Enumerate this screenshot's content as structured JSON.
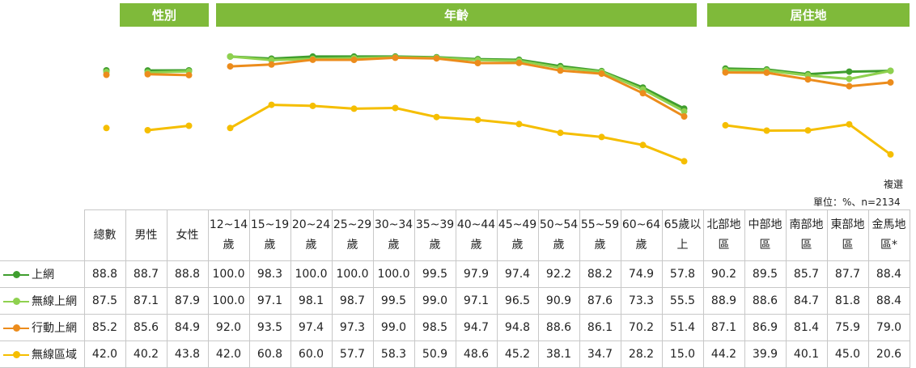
{
  "header_groups": [
    "性別",
    "年齡",
    "居住地"
  ],
  "note_multi": "複選",
  "unit_note": "單位：%、n=2134",
  "chart_data": {
    "type": "line",
    "categories": [
      "總數",
      "男性",
      "女性",
      "12~14歲",
      "15~19歲",
      "20~24歲",
      "25~29歲",
      "30~34歲",
      "35~39歲",
      "40~44歲",
      "45~49歲",
      "50~54歲",
      "55~59歲",
      "60~64歲",
      "65歲以上",
      "北部地區",
      "中部地區",
      "南部地區",
      "東部地區",
      "金馬地區*"
    ],
    "series": [
      {
        "name": "上網",
        "color": "#3f9e2e",
        "values": [
          88.8,
          88.7,
          88.8,
          100.0,
          98.3,
          100.0,
          100.0,
          100.0,
          99.5,
          97.9,
          97.4,
          92.2,
          88.2,
          74.9,
          57.8,
          90.2,
          89.5,
          85.7,
          87.7,
          88.4
        ]
      },
      {
        "name": "無線上網",
        "color": "#8fd14f",
        "values": [
          87.5,
          87.1,
          87.9,
          100.0,
          97.1,
          98.1,
          98.7,
          99.5,
          99.0,
          97.1,
          96.5,
          90.9,
          87.6,
          73.3,
          55.5,
          88.9,
          88.6,
          84.7,
          81.8,
          88.4
        ]
      },
      {
        "name": "行動上網",
        "color": "#ec8c1c",
        "values": [
          85.2,
          85.6,
          84.9,
          92.0,
          93.5,
          97.4,
          97.3,
          99.0,
          98.5,
          94.7,
          94.8,
          88.6,
          86.1,
          70.2,
          51.4,
          87.1,
          86.9,
          81.4,
          75.9,
          79.0
        ]
      },
      {
        "name": "無線區域",
        "color": "#f5be00",
        "values": [
          42.0,
          40.2,
          43.8,
          42.0,
          60.8,
          60.0,
          57.7,
          58.3,
          50.9,
          48.6,
          45.2,
          38.1,
          34.7,
          28.2,
          15.0,
          44.2,
          39.9,
          40.1,
          45.0,
          20.6
        ]
      }
    ],
    "groups": [
      {
        "label": "總數",
        "indices": [
          0
        ]
      },
      {
        "label": "性別",
        "indices": [
          1,
          2
        ]
      },
      {
        "label": "年齡",
        "indices": [
          3,
          4,
          5,
          6,
          7,
          8,
          9,
          10,
          11,
          12,
          13,
          14
        ]
      },
      {
        "label": "居住地",
        "indices": [
          15,
          16,
          17,
          18,
          19
        ]
      }
    ]
  },
  "table": {
    "headers": [
      [
        "總數"
      ],
      [
        "男性"
      ],
      [
        "女性"
      ],
      [
        "12~14",
        "歲"
      ],
      [
        "15~19",
        "歲"
      ],
      [
        "20~24",
        "歲"
      ],
      [
        "25~29",
        "歲"
      ],
      [
        "30~34",
        "歲"
      ],
      [
        "35~39",
        "歲"
      ],
      [
        "40~44",
        "歲"
      ],
      [
        "45~49",
        "歲"
      ],
      [
        "50~54",
        "歲"
      ],
      [
        "55~59",
        "歲"
      ],
      [
        "60~64",
        "歲"
      ],
      [
        "65歲以",
        "上"
      ],
      [
        "北部地",
        "區"
      ],
      [
        "中部地",
        "區"
      ],
      [
        "南部地",
        "區"
      ],
      [
        "東部地",
        "區"
      ],
      [
        "金馬地",
        "區*"
      ]
    ],
    "rows": [
      {
        "label": "上網",
        "cells": [
          "88.8",
          "88.7",
          "88.8",
          "100.0",
          "98.3",
          "100.0",
          "100.0",
          "100.0",
          "99.5",
          "97.9",
          "97.4",
          "92.2",
          "88.2",
          "74.9",
          "57.8",
          "90.2",
          "89.5",
          "85.7",
          "87.7",
          "88.4"
        ]
      },
      {
        "label": "無線上網",
        "cells": [
          "87.5",
          "87.1",
          "87.9",
          "100.0",
          "97.1",
          "98.1",
          "98.7",
          "99.5",
          "99.0",
          "97.1",
          "96.5",
          "90.9",
          "87.6",
          "73.3",
          "55.5",
          "88.9",
          "88.6",
          "84.7",
          "81.8",
          "88.4"
        ]
      },
      {
        "label": "行動上網",
        "cells": [
          "85.2",
          "85.6",
          "84.9",
          "92.0",
          "93.5",
          "97.4",
          "97.3",
          "99.0",
          "98.5",
          "94.7",
          "94.8",
          "88.6",
          "86.1",
          "70.2",
          "51.4",
          "87.1",
          "86.9",
          "81.4",
          "75.9",
          "79.0"
        ]
      },
      {
        "label": "無線區域",
        "cells": [
          "42.0",
          "40.2",
          "43.8",
          "42.0",
          "60.8",
          "60.0",
          "57.7",
          "58.3",
          "50.9",
          "48.6",
          "45.2",
          "38.1",
          "34.7",
          "28.2",
          "15.0",
          "44.2",
          "39.9",
          "40.1",
          "45.0",
          "20.6"
        ]
      }
    ]
  }
}
